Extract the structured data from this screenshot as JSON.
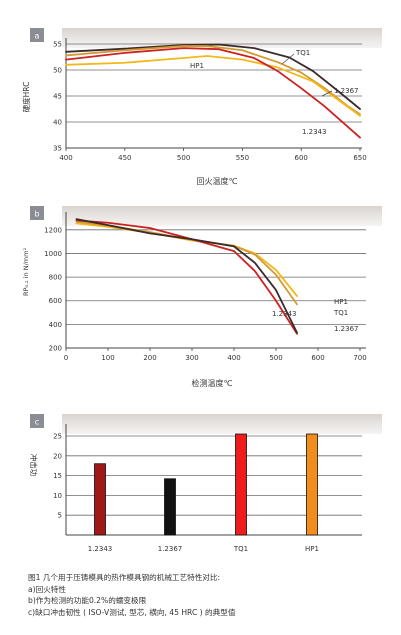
{
  "chart_data": [
    {
      "type": "line",
      "panel_label": "a",
      "xlabel": "回火温度℃",
      "ylabel": "硬度HRC",
      "xlim": [
        400,
        650
      ],
      "ylim": [
        35,
        55
      ],
      "xticks": [
        400,
        450,
        500,
        550,
        600,
        650
      ],
      "yticks": [
        35,
        40,
        45,
        50,
        55
      ],
      "grid": "horizontal",
      "series": [
        {
          "name": "TQ1",
          "color": "#3a2a2e",
          "x": [
            400,
            450,
            500,
            530,
            560,
            590,
            610,
            630,
            650
          ],
          "y": [
            53.5,
            54.1,
            54.8,
            54.9,
            54.2,
            52.4,
            49.8,
            46.2,
            42.5
          ]
        },
        {
          "name": "1.2367",
          "color": "#d49a2e",
          "x": [
            400,
            450,
            500,
            520,
            550,
            580,
            600,
            620,
            640,
            650
          ],
          "y": [
            52.8,
            53.8,
            54.6,
            54.6,
            53.8,
            51.5,
            49.5,
            46.5,
            43.0,
            41.5
          ]
        },
        {
          "name": "HP1",
          "color": "#f2b81c",
          "x": [
            400,
            450,
            500,
            520,
            550,
            580,
            610,
            630,
            650
          ],
          "y": [
            51.0,
            51.4,
            52.3,
            52.7,
            52.0,
            50.5,
            47.8,
            44.5,
            41.2
          ]
        },
        {
          "name": "1.2343",
          "color": "#cc2222",
          "x": [
            400,
            450,
            500,
            530,
            560,
            580,
            600,
            620,
            640,
            650
          ],
          "y": [
            52.0,
            53.3,
            54.2,
            54.0,
            52.3,
            49.8,
            46.5,
            43.0,
            39.0,
            37.0
          ]
        }
      ]
    },
    {
      "type": "line",
      "panel_label": "b",
      "xlabel": "检测温度℃",
      "ylabel": "RP₀.₂ in N/mm²",
      "xlim": [
        0,
        700
      ],
      "ylim": [
        200,
        1300
      ],
      "xticks": [
        0,
        100,
        200,
        300,
        400,
        500,
        600,
        700
      ],
      "yticks": [
        200,
        400,
        600,
        800,
        1000,
        1200
      ],
      "grid": "horizontal",
      "series": [
        {
          "name": "HP1",
          "color": "#f2b81c",
          "x": [
            25,
            100,
            200,
            300,
            400,
            450,
            500,
            550
          ],
          "y": [
            1255,
            1225,
            1175,
            1110,
            1065,
            1000,
            860,
            640
          ]
        },
        {
          "name": "TQ1",
          "color": "#d49a2e",
          "x": [
            25,
            100,
            200,
            300,
            400,
            450,
            500,
            550
          ],
          "y": [
            1270,
            1235,
            1180,
            1115,
            1065,
            990,
            820,
            570
          ]
        },
        {
          "name": "1.2343",
          "color": "#cc2222",
          "x": [
            25,
            100,
            200,
            300,
            400,
            450,
            500,
            550
          ],
          "y": [
            1280,
            1260,
            1215,
            1120,
            1020,
            850,
            600,
            320
          ]
        },
        {
          "name": "1.2367",
          "color": "#3a2a2e",
          "x": [
            25,
            100,
            200,
            300,
            400,
            450,
            500,
            550
          ],
          "y": [
            1290,
            1240,
            1170,
            1120,
            1060,
            920,
            690,
            330
          ]
        }
      ]
    },
    {
      "type": "bar",
      "panel_label": "c",
      "ylabel": "冲击功",
      "ylim": [
        0,
        25
      ],
      "yticks": [
        5,
        10,
        15,
        20,
        25
      ],
      "grid": "horizontal",
      "categories": [
        "1.2343",
        "1.2367",
        "TQ1",
        "HP1"
      ],
      "values": [
        18,
        14.2,
        25.5,
        25.5
      ],
      "colors": [
        "#a01818",
        "#111111",
        "#ee1c1c",
        "#f28c1c"
      ]
    }
  ],
  "caption": {
    "line1": "图1 几个用于压铸模具的热作模具钢的机械工艺特性对比:",
    "line2": "a)回火特性",
    "line3": "b)作为检测的功能0.2%的蠕变极限",
    "line4": "c)缺口冲击韧性 ( ISO-V测试, 型芯, 横向, 45 HRC ) 的典型值"
  }
}
